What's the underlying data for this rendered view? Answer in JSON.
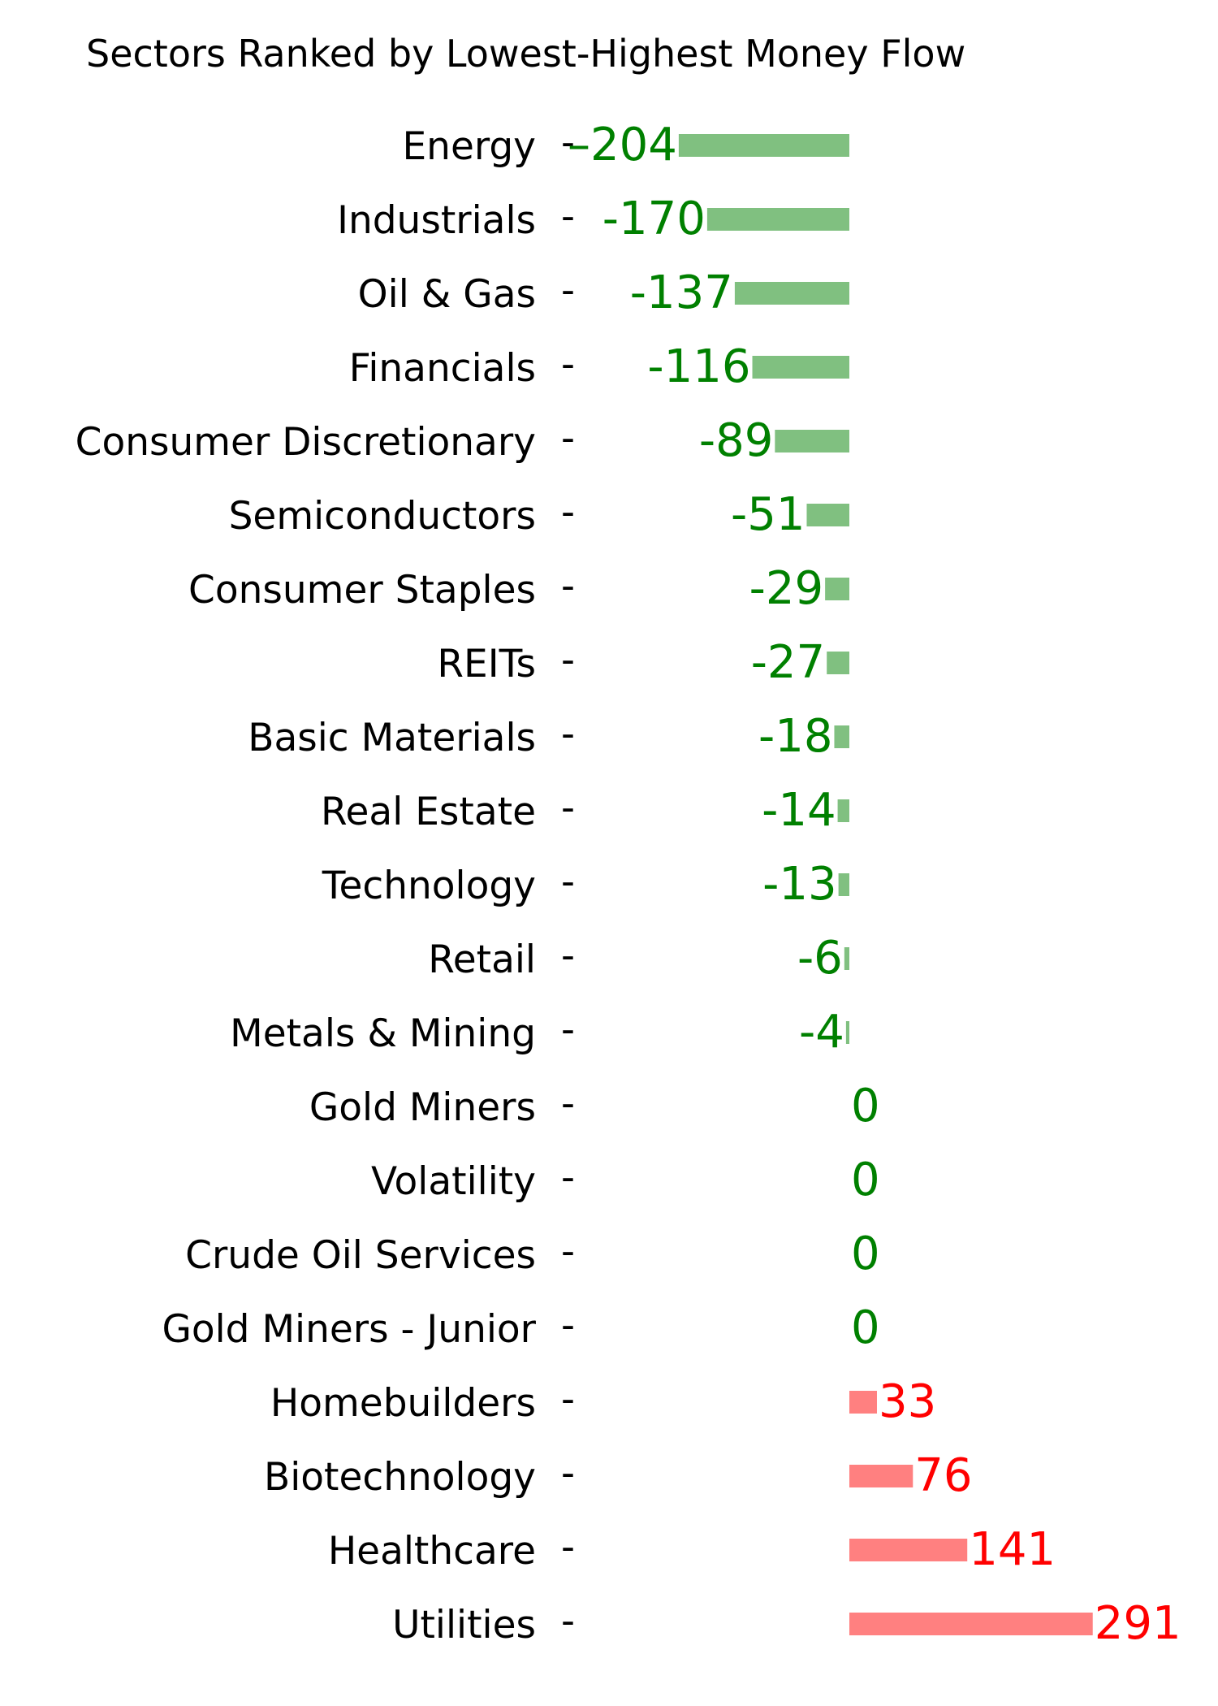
{
  "chart_data": {
    "type": "bar",
    "orientation": "horizontal",
    "title": "Sectors Ranked by Lowest-Highest Money Flow",
    "xlabel": "",
    "ylabel": "",
    "grid": false,
    "legend": "none",
    "xlim": [
      -210,
      300
    ],
    "categories": [
      "Energy",
      "Industrials",
      "Oil & Gas",
      "Financials",
      "Consumer Discretionary",
      "Semiconductors",
      "Consumer Staples",
      "REITs",
      "Basic Materials",
      "Real Estate",
      "Technology",
      "Retail",
      "Metals & Mining",
      "Gold Miners",
      "Volatility",
      "Crude Oil Services",
      "Gold Miners - Junior",
      "Homebuilders",
      "Biotechnology",
      "Healthcare",
      "Utilities"
    ],
    "values": [
      -204,
      -170,
      -137,
      -116,
      -89,
      -51,
      -29,
      -27,
      -18,
      -14,
      -13,
      -6,
      -4,
      0,
      0,
      0,
      0,
      33,
      76,
      141,
      291
    ],
    "value_labels": [
      "–204",
      "-170",
      "-137",
      "-116",
      "-89",
      "-51",
      "-29",
      "-27",
      "-18",
      "-14",
      "-13",
      "-6",
      "-4",
      "0",
      "0",
      "0",
      "0",
      "33",
      "76",
      "141",
      "291"
    ],
    "tick_mark": "-",
    "colors": {
      "negative_bar": "#80c080",
      "negative_text": "#008000",
      "positive_bar": "#ff8080",
      "positive_text": "#ff0000"
    }
  }
}
